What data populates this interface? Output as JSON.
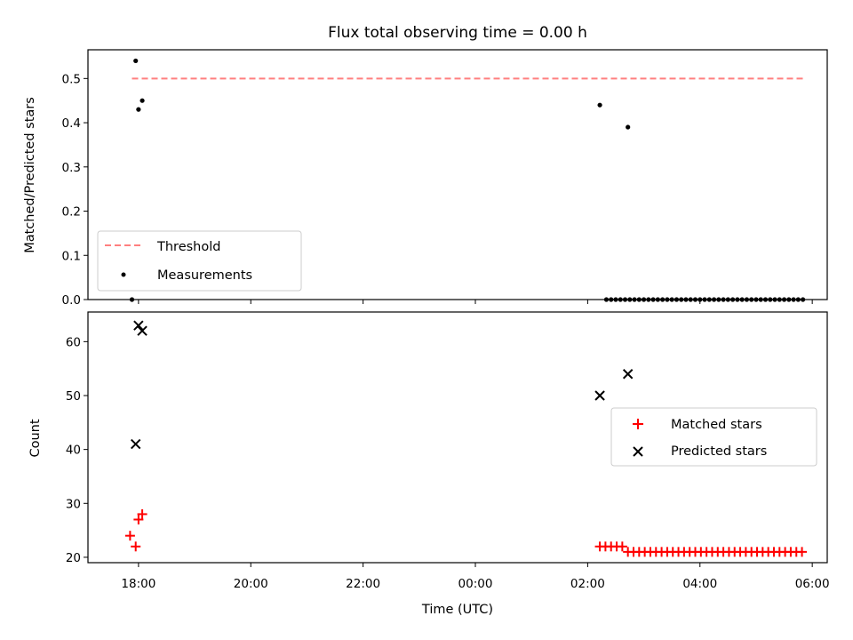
{
  "chart_data": [
    {
      "type": "scatter",
      "title": "Flux total observing time = 0.00 h",
      "ylabel": "Matched/Predicted stars",
      "xlim": [
        "17:06",
        "06:16"
      ],
      "ylim": [
        0,
        0.565
      ],
      "yticks": [
        "0.0",
        "0.1",
        "0.2",
        "0.3",
        "0.4",
        "0.5"
      ],
      "threshold": {
        "value": 0.5,
        "x_range": [
          "17:53",
          "05:53"
        ],
        "color": "#ff7f7f",
        "style": "dashed"
      },
      "legend": {
        "location": "lower-left",
        "entries": [
          "Threshold",
          "Measurements"
        ]
      },
      "series": [
        {
          "name": "Measurements",
          "color": "#000000",
          "marker": "dot",
          "points": [
            [
              "17:53",
              0.0
            ],
            [
              "17:57",
              0.54
            ],
            [
              "18:00",
              0.43
            ],
            [
              "18:04",
              0.45
            ],
            [
              "02:13",
              0.44
            ],
            [
              "02:43",
              0.39
            ],
            [
              "02:20",
              0.0
            ],
            [
              "02:25",
              0.0
            ],
            [
              "02:30",
              0.0
            ],
            [
              "02:35",
              0.0
            ],
            [
              "02:40",
              0.0
            ],
            [
              "02:45",
              0.0
            ],
            [
              "02:50",
              0.0
            ],
            [
              "02:55",
              0.0
            ],
            [
              "03:00",
              0.0
            ],
            [
              "03:05",
              0.0
            ],
            [
              "03:10",
              0.0
            ],
            [
              "03:15",
              0.0
            ],
            [
              "03:20",
              0.0
            ],
            [
              "03:25",
              0.0
            ],
            [
              "03:30",
              0.0
            ],
            [
              "03:35",
              0.0
            ],
            [
              "03:40",
              0.0
            ],
            [
              "03:45",
              0.0
            ],
            [
              "03:50",
              0.0
            ],
            [
              "03:55",
              0.0
            ],
            [
              "04:00",
              0.0
            ],
            [
              "04:05",
              0.0
            ],
            [
              "04:10",
              0.0
            ],
            [
              "04:15",
              0.0
            ],
            [
              "04:20",
              0.0
            ],
            [
              "04:25",
              0.0
            ],
            [
              "04:30",
              0.0
            ],
            [
              "04:35",
              0.0
            ],
            [
              "04:40",
              0.0
            ],
            [
              "04:45",
              0.0
            ],
            [
              "04:50",
              0.0
            ],
            [
              "04:55",
              0.0
            ],
            [
              "05:00",
              0.0
            ],
            [
              "05:05",
              0.0
            ],
            [
              "05:10",
              0.0
            ],
            [
              "05:15",
              0.0
            ],
            [
              "05:20",
              0.0
            ],
            [
              "05:25",
              0.0
            ],
            [
              "05:30",
              0.0
            ],
            [
              "05:35",
              0.0
            ],
            [
              "05:40",
              0.0
            ],
            [
              "05:45",
              0.0
            ],
            [
              "05:50",
              0.0
            ]
          ]
        }
      ]
    },
    {
      "type": "scatter",
      "xlabel": "Time (UTC)",
      "ylabel": "Count",
      "xlim": [
        "17:06",
        "06:16"
      ],
      "ylim": [
        19,
        65.5
      ],
      "xticks": [
        "18:00",
        "20:00",
        "22:00",
        "00:00",
        "02:00",
        "04:00",
        "06:00"
      ],
      "yticks": [
        "20",
        "30",
        "40",
        "50",
        "60"
      ],
      "legend": {
        "location": "right",
        "entries": [
          "Matched stars",
          "Predicted stars"
        ]
      },
      "series": [
        {
          "name": "Matched stars",
          "color": "#ff0000",
          "marker": "plus",
          "points": [
            [
              "17:51",
              24
            ],
            [
              "17:57",
              22
            ],
            [
              "18:00",
              27
            ],
            [
              "18:04",
              28
            ],
            [
              "02:13",
              22
            ],
            [
              "02:19",
              22
            ],
            [
              "02:25",
              22
            ],
            [
              "02:31",
              22
            ],
            [
              "02:37",
              22
            ],
            [
              "02:43",
              21
            ],
            [
              "02:49",
              21
            ],
            [
              "02:55",
              21
            ],
            [
              "03:01",
              21
            ],
            [
              "03:07",
              21
            ],
            [
              "03:13",
              21
            ],
            [
              "03:19",
              21
            ],
            [
              "03:25",
              21
            ],
            [
              "03:31",
              21
            ],
            [
              "03:37",
              21
            ],
            [
              "03:43",
              21
            ],
            [
              "03:49",
              21
            ],
            [
              "03:55",
              21
            ],
            [
              "04:01",
              21
            ],
            [
              "04:07",
              21
            ],
            [
              "04:13",
              21
            ],
            [
              "04:19",
              21
            ],
            [
              "04:25",
              21
            ],
            [
              "04:31",
              21
            ],
            [
              "04:37",
              21
            ],
            [
              "04:43",
              21
            ],
            [
              "04:49",
              21
            ],
            [
              "04:55",
              21
            ],
            [
              "05:01",
              21
            ],
            [
              "05:07",
              21
            ],
            [
              "05:13",
              21
            ],
            [
              "05:19",
              21
            ],
            [
              "05:25",
              21
            ],
            [
              "05:31",
              21
            ],
            [
              "05:37",
              21
            ],
            [
              "05:43",
              21
            ],
            [
              "05:49",
              21
            ]
          ]
        },
        {
          "name": "Predicted stars",
          "color": "#000000",
          "marker": "x",
          "points": [
            [
              "17:57",
              41
            ],
            [
              "18:00",
              63
            ],
            [
              "18:04",
              62
            ],
            [
              "02:13",
              50
            ],
            [
              "02:43",
              54
            ]
          ]
        }
      ]
    }
  ]
}
